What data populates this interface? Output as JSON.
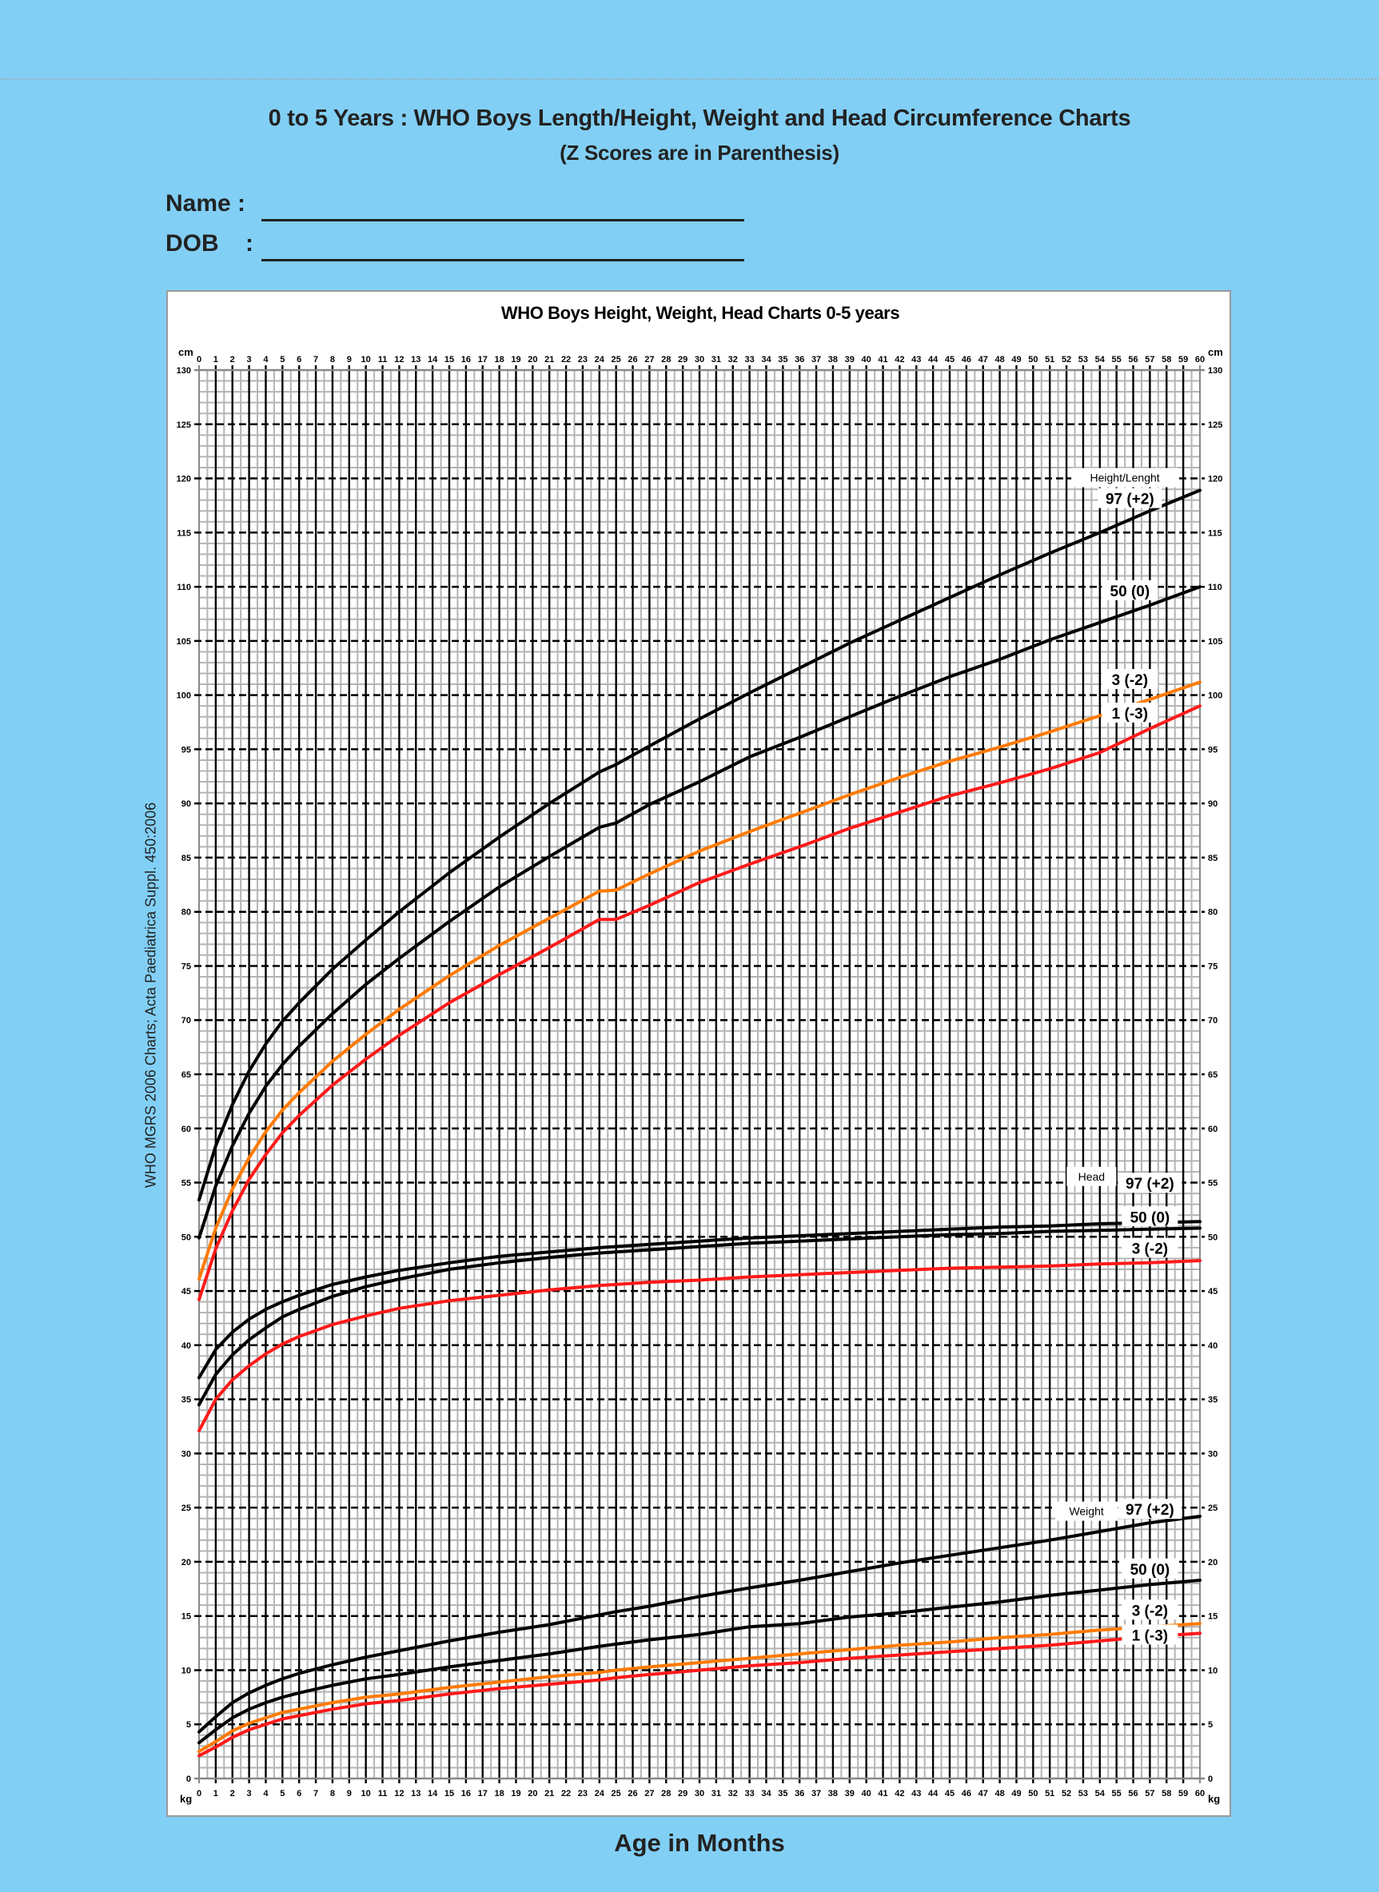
{
  "header": {
    "title": "0 to 5 Years : WHO Boys Length/Height, Weight and Head Circumference Charts",
    "subtitle": "(Z Scores are in Parenthesis)"
  },
  "form": {
    "name_label": "Name :",
    "dob_label": "DOB    :"
  },
  "side_note": "WHO MGRS 2006 Charts; Acta Paediatrica Suppl. 450:2006",
  "footer": {
    "x_caption": "Age in Months"
  },
  "colors": {
    "background": "#82cff5",
    "curve_black": "#000000",
    "curve_orange": "#ff7a00",
    "curve_red": "#ff1a1a",
    "grid_major": "#000000",
    "grid_minor": "#b4b4b4"
  },
  "chart_data": {
    "type": "line",
    "title": "WHO Boys Height, Weight, Head Charts 0-5 years",
    "xlabel": "Age in Months",
    "ylabel_top": "cm",
    "ylabel_bottom": "kg",
    "xlim": [
      0,
      60
    ],
    "ylim": [
      0,
      130
    ],
    "x_ticks": [
      0,
      1,
      2,
      3,
      4,
      5,
      6,
      7,
      8,
      9,
      10,
      11,
      12,
      13,
      14,
      15,
      16,
      17,
      18,
      19,
      20,
      21,
      22,
      23,
      24,
      25,
      26,
      27,
      28,
      29,
      30,
      31,
      32,
      33,
      34,
      35,
      36,
      37,
      38,
      39,
      40,
      41,
      42,
      43,
      44,
      45,
      46,
      47,
      48,
      49,
      50,
      51,
      52,
      53,
      54,
      55,
      56,
      57,
      58,
      59,
      60
    ],
    "y_ticks": [
      0,
      5,
      10,
      15,
      20,
      25,
      30,
      35,
      40,
      45,
      50,
      55,
      60,
      65,
      70,
      75,
      80,
      85,
      90,
      95,
      100,
      105,
      110,
      115,
      120,
      125,
      130
    ],
    "grid": true,
    "x": [
      0,
      1,
      2,
      3,
      4,
      5,
      6,
      8,
      10,
      12,
      15,
      18,
      21,
      24,
      25,
      27,
      30,
      33,
      36,
      39,
      42,
      45,
      48,
      51,
      54,
      57,
      60
    ],
    "groups": [
      {
        "name": "Height/Lenght",
        "label_box": {
          "text": "Height/Lenght",
          "x": 55.5,
          "y": 120
        },
        "series": [
          {
            "name": "97 (+2)",
            "color": "curve_black",
            "label_x": 55.8,
            "label_y": 118,
            "values": [
              53.4,
              58.4,
              62.2,
              65.3,
              67.8,
              69.9,
              71.6,
              74.7,
              77.4,
              80.0,
              83.6,
              86.9,
              90.0,
              92.9,
              93.6,
              95.3,
              97.8,
              100.2,
              102.5,
              104.8,
              106.9,
              109.0,
              111.1,
              113.1,
              115.0,
              117.0,
              118.9
            ]
          },
          {
            "name": "50 (0)",
            "color": "curve_black",
            "label_x": 55.8,
            "label_y": 109.5,
            "values": [
              49.9,
              54.7,
              58.4,
              61.4,
              63.9,
              65.9,
              67.6,
              70.6,
              73.3,
              75.7,
              79.1,
              82.3,
              85.1,
              87.8,
              88.2,
              89.9,
              92.0,
              94.3,
              96.1,
              98.0,
              99.9,
              101.7,
              103.3,
              105.1,
              106.7,
              108.3,
              110.0
            ]
          },
          {
            "name": "3 (-2)",
            "color": "curve_orange",
            "label_x": 55.8,
            "label_y": 101.3,
            "values": [
              46.1,
              50.8,
              54.4,
              57.3,
              59.7,
              61.7,
              63.3,
              66.2,
              68.7,
              71.0,
              74.1,
              76.9,
              79.4,
              81.9,
              82.0,
              83.5,
              85.6,
              87.4,
              89.1,
              90.8,
              92.4,
              93.9,
              95.2,
              96.6,
              98.1,
              99.6,
              101.2
            ]
          },
          {
            "name": "1 (-3)",
            "color": "curve_red",
            "label_x": 55.8,
            "label_y": 98.2,
            "values": [
              44.2,
              48.9,
              52.4,
              55.3,
              57.6,
              59.6,
              61.2,
              64.0,
              66.4,
              68.6,
              71.6,
              74.2,
              76.7,
              79.3,
              79.3,
              80.6,
              82.7,
              84.4,
              86.0,
              87.7,
              89.2,
              90.7,
              91.9,
              93.2,
              94.7,
              96.9,
              99.0
            ]
          }
        ]
      },
      {
        "name": "Head",
        "label_box": {
          "text": "Head",
          "x": 53.5,
          "y": 55.5
        },
        "series": [
          {
            "name": "97 (+2)",
            "color": "curve_black",
            "label_x": 57.0,
            "label_y": 54.8,
            "values": [
              37.0,
              39.6,
              41.2,
              42.4,
              43.3,
              44.0,
              44.6,
              45.6,
              46.3,
              46.9,
              47.6,
              48.2,
              48.6,
              49.0,
              49.1,
              49.3,
              49.6,
              49.9,
              50.1,
              50.3,
              50.5,
              50.7,
              50.9,
              51.0,
              51.2,
              51.3,
              51.4
            ]
          },
          {
            "name": "50 (0)",
            "color": "curve_black",
            "label_x": 57.0,
            "label_y": 51.7,
            "values": [
              34.5,
              37.3,
              39.1,
              40.5,
              41.6,
              42.6,
              43.3,
              44.5,
              45.4,
              46.1,
              47.0,
              47.6,
              48.1,
              48.5,
              48.6,
              48.8,
              49.1,
              49.4,
              49.6,
              49.8,
              50.0,
              50.2,
              50.3,
              50.5,
              50.6,
              50.7,
              50.8
            ]
          },
          {
            "name": "3 (-2)",
            "color": "curve_red",
            "label_x": 57.0,
            "label_y": 48.8,
            "values": [
              32.1,
              35.0,
              36.8,
              38.1,
              39.2,
              40.1,
              40.8,
              41.9,
              42.7,
              43.4,
              44.1,
              44.6,
              45.1,
              45.5,
              45.6,
              45.8,
              46.0,
              46.3,
              46.5,
              46.7,
              46.9,
              47.1,
              47.2,
              47.3,
              47.5,
              47.6,
              47.8
            ]
          }
        ]
      },
      {
        "name": "Weight",
        "label_box": {
          "text": "Weight",
          "x": 53.2,
          "y": 24.6
        },
        "series": [
          {
            "name": "97 (+2)",
            "color": "curve_black",
            "label_x": 57.0,
            "label_y": 24.7,
            "values": [
              4.3,
              5.7,
              7.0,
              7.9,
              8.6,
              9.2,
              9.7,
              10.5,
              11.2,
              11.8,
              12.7,
              13.5,
              14.2,
              15.1,
              15.4,
              15.9,
              16.8,
              17.6,
              18.3,
              19.1,
              19.9,
              20.6,
              21.3,
              22.0,
              22.8,
              23.6,
              24.2
            ]
          },
          {
            "name": "50 (0)",
            "color": "curve_black",
            "label_x": 57.0,
            "label_y": 19.2,
            "values": [
              3.3,
              4.5,
              5.6,
              6.4,
              7.0,
              7.5,
              7.9,
              8.6,
              9.2,
              9.6,
              10.3,
              10.9,
              11.5,
              12.2,
              12.4,
              12.8,
              13.3,
              14.0,
              14.3,
              14.9,
              15.3,
              15.8,
              16.3,
              16.9,
              17.4,
              17.9,
              18.3
            ]
          },
          {
            "name": "3 (-2)",
            "color": "curve_orange",
            "label_x": 57.0,
            "label_y": 15.4,
            "values": [
              2.5,
              3.4,
              4.4,
              5.1,
              5.6,
              6.1,
              6.4,
              7.0,
              7.5,
              7.8,
              8.4,
              8.9,
              9.4,
              9.8,
              10.0,
              10.3,
              10.7,
              11.1,
              11.5,
              11.9,
              12.3,
              12.6,
              13.0,
              13.3,
              13.7,
              14.0,
              14.3
            ]
          },
          {
            "name": "1 (-3)",
            "color": "curve_red",
            "label_x": 57.0,
            "label_y": 13.1,
            "values": [
              2.1,
              2.9,
              3.8,
              4.5,
              5.0,
              5.5,
              5.8,
              6.4,
              6.9,
              7.2,
              7.8,
              8.3,
              8.7,
              9.1,
              9.3,
              9.6,
              10.0,
              10.4,
              10.7,
              11.1,
              11.4,
              11.7,
              12.0,
              12.3,
              12.7,
              13.1,
              13.4
            ]
          }
        ]
      }
    ]
  }
}
